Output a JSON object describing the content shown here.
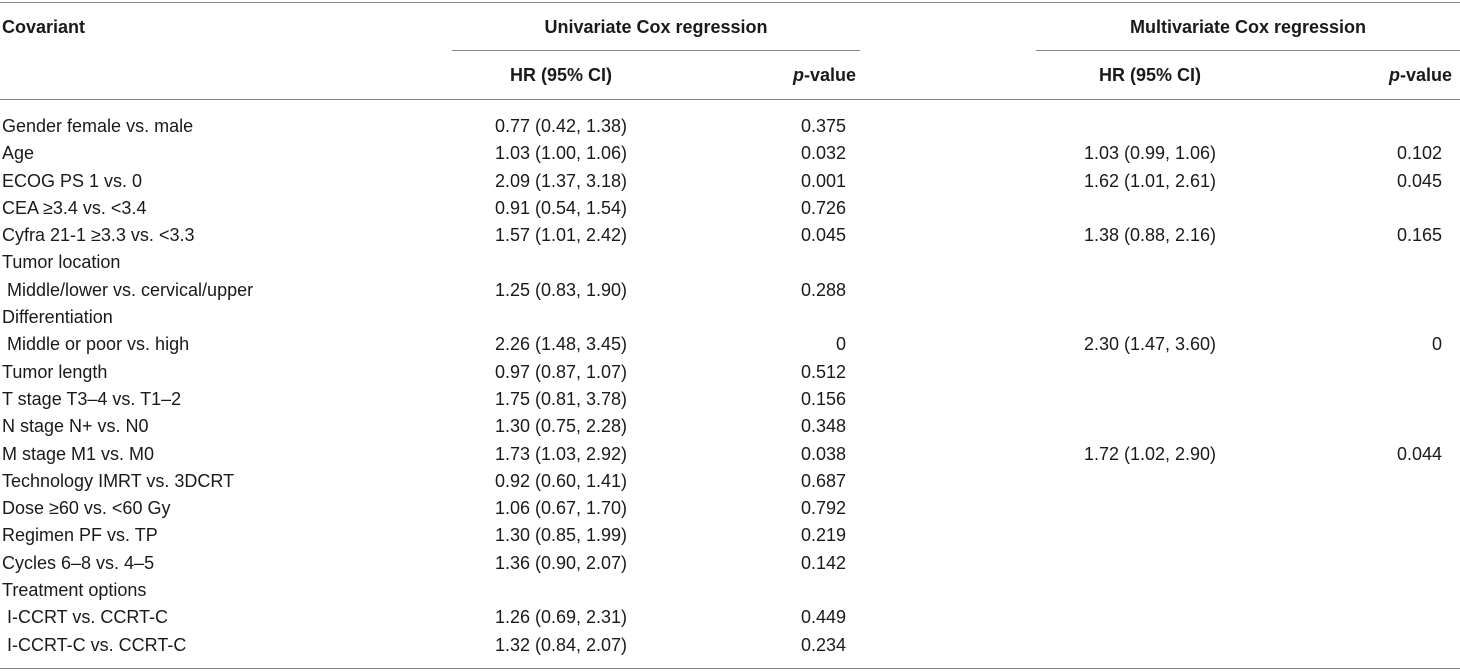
{
  "header": {
    "covariant": "Covariant",
    "univariate": "Univariate Cox regression",
    "multivariate": "Multivariate Cox regression",
    "hr_label": "HR (95% CI)",
    "p_italic": "p",
    "p_rest": "-value"
  },
  "rows": [
    {
      "covariant": "Gender female vs. male",
      "uni_hr": "0.77 (0.42, 1.38)",
      "uni_p": "0.375",
      "multi_hr": "",
      "multi_p": ""
    },
    {
      "covariant": "Age",
      "uni_hr": "1.03 (1.00, 1.06)",
      "uni_p": "0.032",
      "multi_hr": "1.03 (0.99, 1.06)",
      "multi_p": "0.102"
    },
    {
      "covariant": "ECOG PS 1 vs. 0",
      "uni_hr": "2.09 (1.37, 3.18)",
      "uni_p": "0.001",
      "multi_hr": "1.62 (1.01, 2.61)",
      "multi_p": "0.045"
    },
    {
      "covariant": "CEA ≥3.4 vs. <3.4",
      "uni_hr": "0.91 (0.54, 1.54)",
      "uni_p": "0.726",
      "multi_hr": "",
      "multi_p": ""
    },
    {
      "covariant": "Cyfra 21-1 ≥3.3 vs. <3.3",
      "uni_hr": "1.57 (1.01, 2.42)",
      "uni_p": "0.045",
      "multi_hr": "1.38 (0.88, 2.16)",
      "multi_p": "0.165"
    },
    {
      "covariant": "Tumor location",
      "uni_hr": "",
      "uni_p": "",
      "multi_hr": "",
      "multi_p": ""
    },
    {
      "covariant": " Middle/lower vs. cervical/upper",
      "uni_hr": "1.25 (0.83, 1.90)",
      "uni_p": "0.288",
      "multi_hr": "",
      "multi_p": ""
    },
    {
      "covariant": "Differentiation",
      "uni_hr": "",
      "uni_p": "",
      "multi_hr": "",
      "multi_p": ""
    },
    {
      "covariant": " Middle or poor vs. high",
      "uni_hr": "2.26 (1.48, 3.45)",
      "uni_p": "0",
      "multi_hr": "2.30 (1.47, 3.60)",
      "multi_p": "0"
    },
    {
      "covariant": "Tumor length",
      "uni_hr": "0.97 (0.87, 1.07)",
      "uni_p": "0.512",
      "multi_hr": "",
      "multi_p": ""
    },
    {
      "covariant": "T stage T3–4 vs. T1–2",
      "uni_hr": "1.75 (0.81, 3.78)",
      "uni_p": "0.156",
      "multi_hr": "",
      "multi_p": ""
    },
    {
      "covariant": "N stage N+ vs. N0",
      "uni_hr": "1.30 (0.75, 2.28)",
      "uni_p": "0.348",
      "multi_hr": "",
      "multi_p": ""
    },
    {
      "covariant": "M stage M1 vs. M0",
      "uni_hr": "1.73 (1.03, 2.92)",
      "uni_p": "0.038",
      "multi_hr": "1.72 (1.02, 2.90)",
      "multi_p": "0.044"
    },
    {
      "covariant": "Technology IMRT vs. 3DCRT",
      "uni_hr": "0.92 (0.60, 1.41)",
      "uni_p": "0.687",
      "multi_hr": "",
      "multi_p": ""
    },
    {
      "covariant": "Dose ≥60 vs. <60 Gy",
      "uni_hr": "1.06 (0.67, 1.70)",
      "uni_p": "0.792",
      "multi_hr": "",
      "multi_p": ""
    },
    {
      "covariant": "Regimen PF vs. TP",
      "uni_hr": "1.30 (0.85, 1.99)",
      "uni_p": "0.219",
      "multi_hr": "",
      "multi_p": ""
    },
    {
      "covariant": "Cycles 6–8 vs. 4–5",
      "uni_hr": "1.36 (0.90, 2.07)",
      "uni_p": "0.142",
      "multi_hr": "",
      "multi_p": ""
    },
    {
      "covariant": "Treatment options",
      "uni_hr": "",
      "uni_p": "",
      "multi_hr": "",
      "multi_p": ""
    },
    {
      "covariant": " I-CCRT vs. CCRT-C",
      "uni_hr": "1.26 (0.69, 2.31)",
      "uni_p": "0.449",
      "multi_hr": "",
      "multi_p": ""
    },
    {
      "covariant": " I-CCRT-C vs. CCRT-C",
      "uni_hr": "1.32 (0.84, 2.07)",
      "uni_p": "0.234",
      "multi_hr": "",
      "multi_p": ""
    }
  ]
}
